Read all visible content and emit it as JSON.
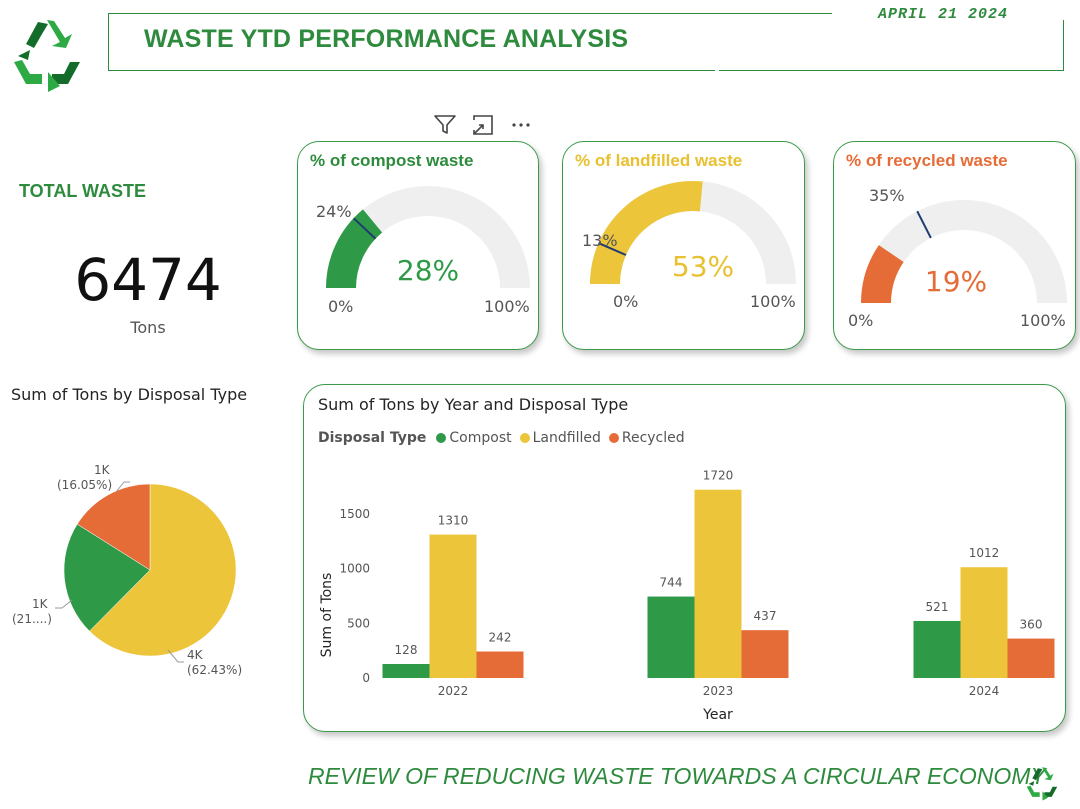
{
  "header": {
    "title": "WASTE YTD PERFORMANCE ANALYSIS",
    "date": "APRIL 21 2024"
  },
  "total": {
    "label": "TOTAL WASTE",
    "value": "6474",
    "unit": "Tons"
  },
  "toolbar": {
    "icons": [
      "filter-icon",
      "focus-mode-icon",
      "more-options-icon"
    ]
  },
  "colors": {
    "compost": "#2e9a48",
    "landfilled": "#ecc53a",
    "recycled": "#e66c37",
    "brand_green": "#2e8b3e",
    "gauge_track": "#efefef",
    "target_marker": "#1f3b73"
  },
  "gauges": [
    {
      "id": "compost",
      "title": "% of compost waste",
      "value": 28,
      "value_label": "28%",
      "target": 24,
      "target_label": "24%",
      "min_label": "0%",
      "max_label": "100%"
    },
    {
      "id": "landfill",
      "title": "% of landfilled waste",
      "value": 53,
      "value_label": "53%",
      "target": 13,
      "target_label": "13%",
      "min_label": "0%",
      "max_label": "100%"
    },
    {
      "id": "recycle",
      "title": "% of recycled waste",
      "value": 19,
      "value_label": "19%",
      "target": 35,
      "target_label": "35%",
      "min_label": "0%",
      "max_label": "100%"
    }
  ],
  "footer": {
    "text": "REVIEW OF REDUCING WASTE TOWARDS A CIRCULAR ECONOMY"
  },
  "chart_data": [
    {
      "type": "pie",
      "title": "Sum of Tons by Disposal Type",
      "categories": [
        "Landfilled",
        "Compost",
        "Recycled"
      ],
      "values": [
        62.43,
        21.52,
        16.05
      ],
      "slice_labels": [
        {
          "value": "4K",
          "percent": "(62.43%)"
        },
        {
          "value": "1K",
          "percent": "(21....)"
        },
        {
          "value": "1K",
          "percent": "(16.05%)"
        }
      ]
    },
    {
      "type": "bar",
      "title": "Sum of Tons by Year and Disposal Type",
      "legend_title": "Disposal Type",
      "xlabel": "Year",
      "ylabel": "Sum of Tons",
      "categories": [
        "2022",
        "2023",
        "2024"
      ],
      "series": [
        {
          "name": "Compost",
          "values": [
            128,
            744,
            521
          ]
        },
        {
          "name": "Landfilled",
          "values": [
            1310,
            1720,
            1012
          ]
        },
        {
          "name": "Recycled",
          "values": [
            242,
            437,
            360
          ]
        }
      ],
      "yticks": [
        0,
        500,
        1000,
        1500
      ],
      "ylim": [
        0,
        1900
      ],
      "grid": false,
      "legend_position": "top-left"
    }
  ]
}
